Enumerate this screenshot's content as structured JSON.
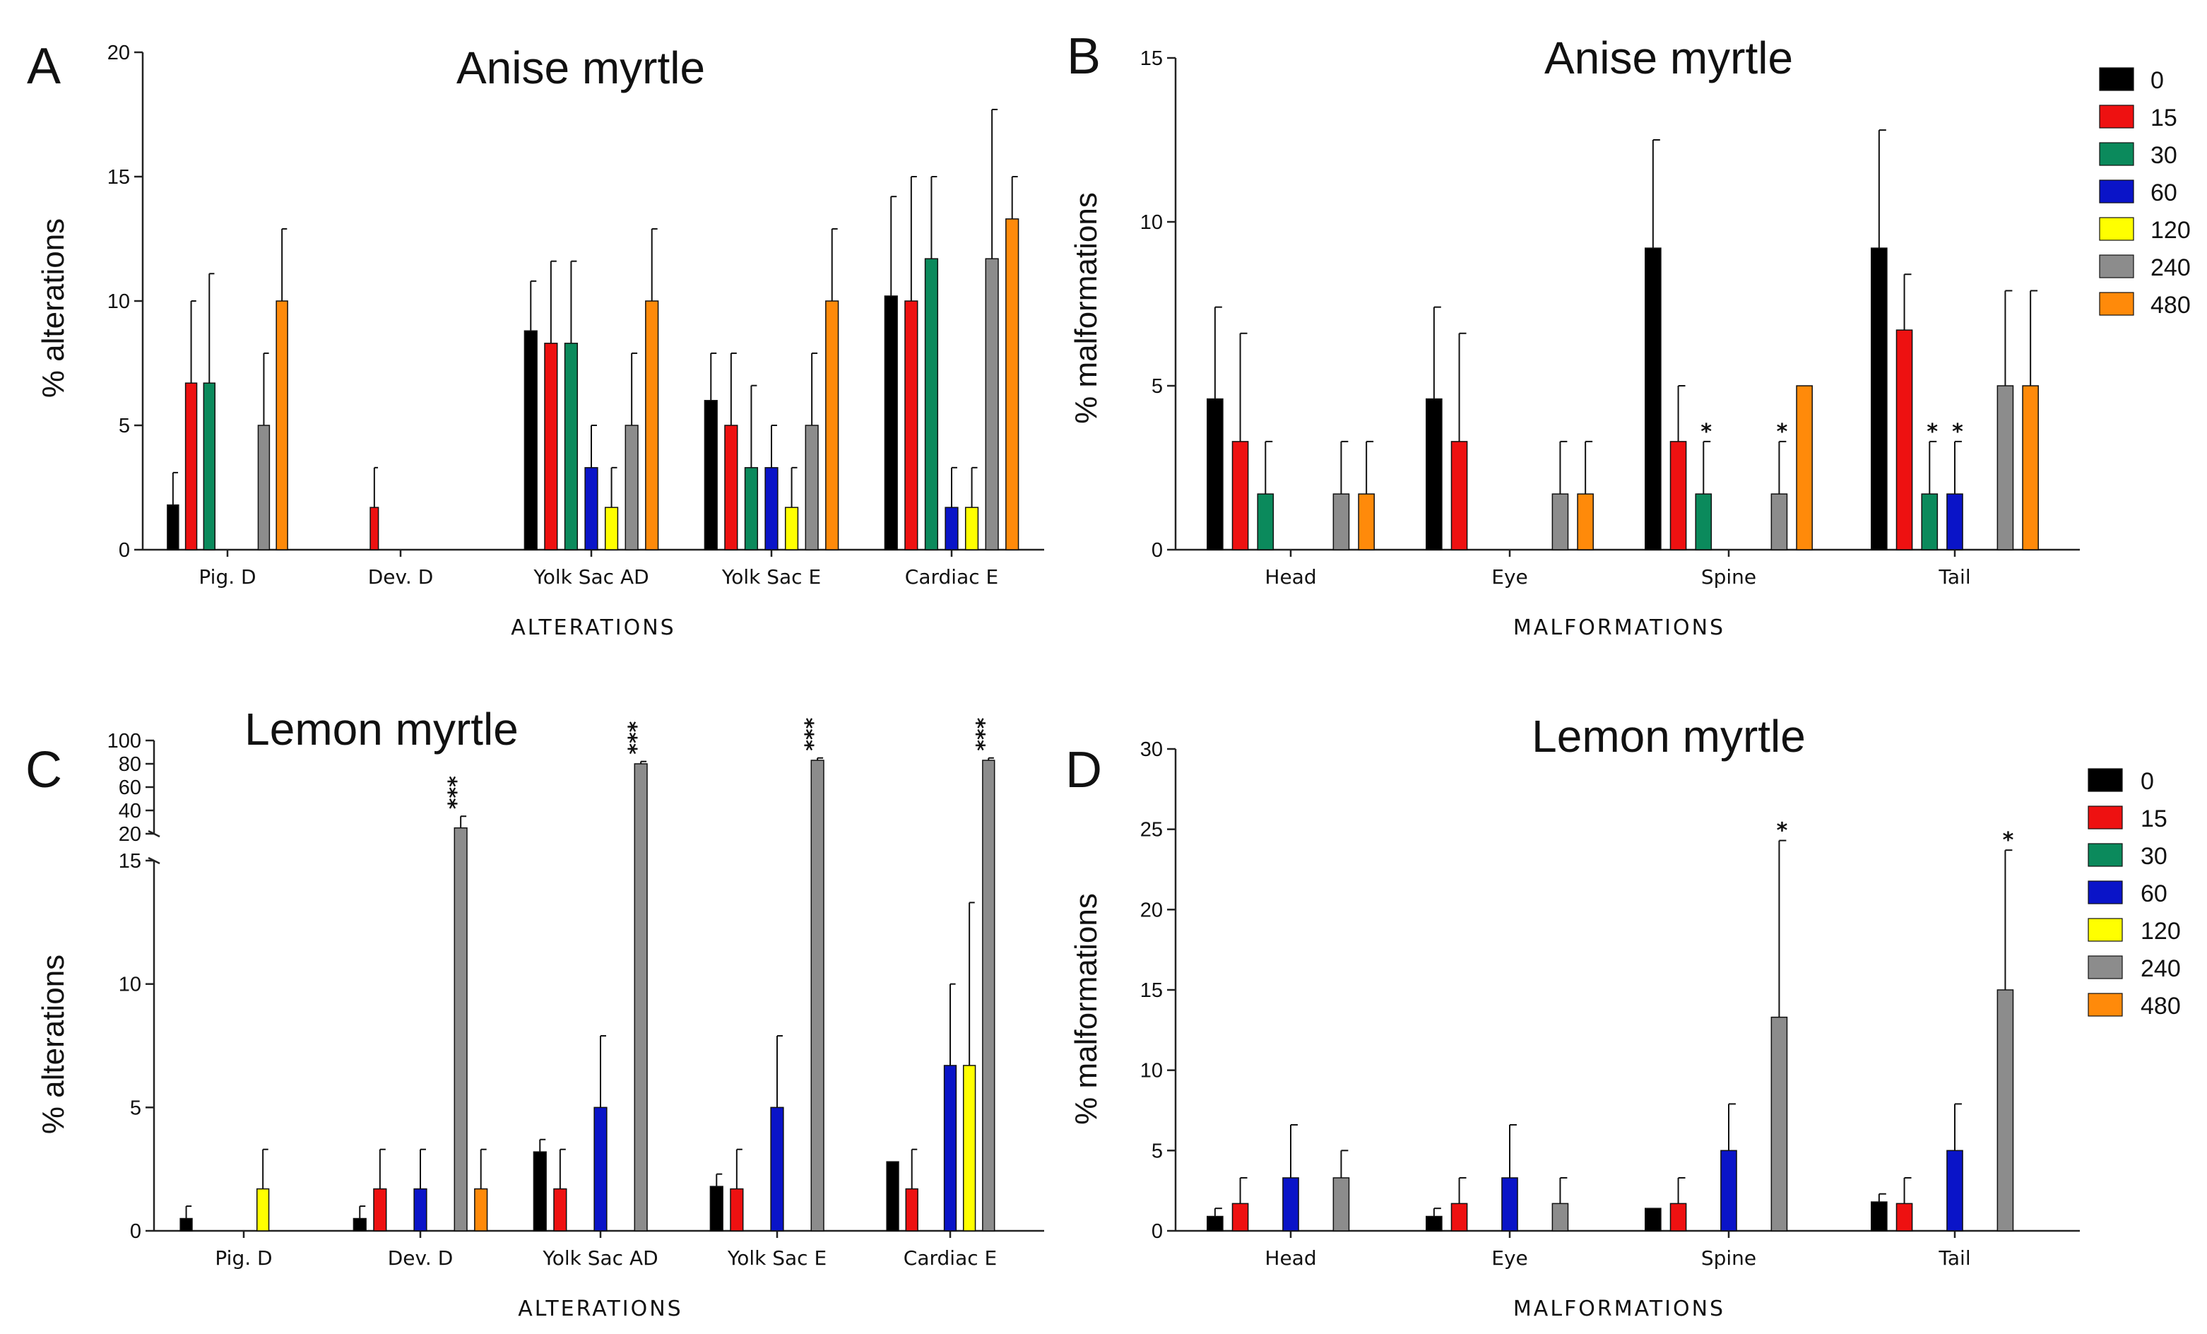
{
  "legend": {
    "doses": [
      "0",
      "15",
      "30",
      "60",
      "120",
      "240",
      "480"
    ],
    "colors": [
      "#000000",
      "#ee1111",
      "#0b8a5c",
      "#0a14c8",
      "#ffff00",
      "#8c8c8c",
      "#ff8a0a"
    ]
  },
  "chart_data": [
    {
      "id": "A",
      "letter": "A",
      "type": "bar",
      "title": "Anise myrtle",
      "xlabel": "ALTERATIONS",
      "ylabel": "% alterations",
      "ylim": [
        0,
        20
      ],
      "yticks": [
        "0",
        "5",
        "10",
        "15",
        "20"
      ],
      "categories": [
        "Pig. D",
        "Dev. D",
        "Yolk Sac AD",
        "Yolk Sac E",
        "Cardiac E"
      ],
      "series": [
        {
          "name": "0",
          "values": [
            1.8,
            0,
            8.8,
            6.0,
            10.2
          ],
          "errors": [
            1.3,
            0,
            2.0,
            1.9,
            4.0
          ],
          "stars": [
            "",
            "",
            "",
            "",
            ""
          ]
        },
        {
          "name": "15",
          "values": [
            6.7,
            1.7,
            8.3,
            5.0,
            10.0
          ],
          "errors": [
            3.3,
            1.6,
            3.3,
            2.9,
            5.0
          ],
          "stars": [
            "",
            "",
            "",
            "",
            ""
          ]
        },
        {
          "name": "30",
          "values": [
            6.7,
            0,
            8.3,
            3.3,
            11.7
          ],
          "errors": [
            4.4,
            0,
            3.3,
            3.3,
            3.3
          ],
          "stars": [
            "",
            "",
            "",
            "",
            ""
          ]
        },
        {
          "name": "60",
          "values": [
            0,
            0,
            3.3,
            3.3,
            1.7
          ],
          "errors": [
            0,
            0,
            1.7,
            1.7,
            1.6
          ],
          "stars": [
            "",
            "",
            "",
            "",
            ""
          ]
        },
        {
          "name": "120",
          "values": [
            0,
            0,
            1.7,
            1.7,
            1.7
          ],
          "errors": [
            0,
            0,
            1.6,
            1.6,
            1.6
          ],
          "stars": [
            "",
            "",
            "",
            "",
            ""
          ]
        },
        {
          "name": "240",
          "values": [
            5.0,
            0,
            5.0,
            5.0,
            11.7
          ],
          "errors": [
            2.9,
            0,
            2.9,
            2.9,
            6.0
          ],
          "stars": [
            "",
            "",
            "",
            "",
            ""
          ]
        },
        {
          "name": "480",
          "values": [
            10.0,
            0,
            10.0,
            10.0,
            13.3
          ],
          "errors": [
            2.9,
            0,
            2.9,
            2.9,
            1.7
          ],
          "stars": [
            "",
            "",
            "",
            "",
            ""
          ]
        }
      ]
    },
    {
      "id": "B",
      "letter": "B",
      "type": "bar",
      "title": "Anise myrtle",
      "xlabel": "MALFORMATIONS",
      "ylabel": "% malformations",
      "ylim": [
        0,
        15
      ],
      "yticks": [
        "0",
        "5",
        "10",
        "15"
      ],
      "categories": [
        "Head",
        "Eye",
        "Spine",
        "Tail"
      ],
      "series": [
        {
          "name": "0",
          "values": [
            4.6,
            4.6,
            9.2,
            9.2
          ],
          "errors": [
            2.8,
            2.8,
            3.3,
            3.6
          ],
          "stars": [
            "",
            "",
            "",
            ""
          ]
        },
        {
          "name": "15",
          "values": [
            3.3,
            3.3,
            3.3,
            6.7
          ],
          "errors": [
            3.3,
            3.3,
            1.7,
            1.7
          ],
          "stars": [
            "",
            "",
            "",
            ""
          ]
        },
        {
          "name": "30",
          "values": [
            1.7,
            0,
            1.7,
            1.7
          ],
          "errors": [
            1.6,
            0,
            1.6,
            1.6
          ],
          "stars": [
            "",
            "",
            "*",
            "*"
          ]
        },
        {
          "name": "60",
          "values": [
            0,
            0,
            0,
            1.7
          ],
          "errors": [
            0,
            0,
            0,
            1.6
          ],
          "stars": [
            "",
            "",
            "",
            "*"
          ]
        },
        {
          "name": "120",
          "values": [
            0,
            0,
            0,
            0
          ],
          "errors": [
            0,
            0,
            0,
            0
          ],
          "stars": [
            "",
            "",
            "",
            ""
          ]
        },
        {
          "name": "240",
          "values": [
            1.7,
            1.7,
            1.7,
            5.0
          ],
          "errors": [
            1.6,
            1.6,
            1.6,
            2.9
          ],
          "stars": [
            "",
            "",
            "*",
            ""
          ]
        },
        {
          "name": "480",
          "values": [
            1.7,
            1.7,
            5.0,
            5.0
          ],
          "errors": [
            1.6,
            1.6,
            0,
            2.9
          ],
          "stars": [
            "",
            "",
            "",
            ""
          ]
        }
      ]
    },
    {
      "id": "C",
      "letter": "C",
      "type": "bar",
      "title": "Lemon myrtle",
      "xlabel": "ALTERATIONS",
      "ylabel": "% alterations",
      "ylim": [
        0,
        100
      ],
      "broken_axis": {
        "lower": [
          0,
          15
        ],
        "upper": [
          20,
          100
        ]
      },
      "yticks_lower": [
        "0",
        "5",
        "10",
        "15"
      ],
      "yticks_upper": [
        "20",
        "40",
        "60",
        "80",
        "100"
      ],
      "categories": [
        "Pig. D",
        "Dev. D",
        "Yolk Sac AD",
        "Yolk Sac E",
        "Cardiac E"
      ],
      "series": [
        {
          "name": "0",
          "values": [
            0.5,
            0.5,
            3.2,
            1.8,
            2.8
          ],
          "errors": [
            0.5,
            0.5,
            0.5,
            0.5,
            0
          ],
          "stars": [
            "",
            "",
            "",
            "",
            ""
          ]
        },
        {
          "name": "15",
          "values": [
            0,
            1.7,
            1.7,
            1.7,
            1.7
          ],
          "errors": [
            0,
            1.6,
            1.6,
            1.6,
            1.6
          ],
          "stars": [
            "",
            "",
            "",
            "",
            ""
          ]
        },
        {
          "name": "30",
          "values": [
            0,
            0,
            0,
            0,
            0
          ],
          "errors": [
            0,
            0,
            0,
            0,
            0
          ],
          "stars": [
            "",
            "",
            "",
            "",
            ""
          ]
        },
        {
          "name": "60",
          "values": [
            0,
            1.7,
            5.0,
            5.0,
            6.7
          ],
          "errors": [
            0,
            1.6,
            2.9,
            2.9,
            3.3
          ],
          "stars": [
            "",
            "",
            "",
            "",
            ""
          ]
        },
        {
          "name": "120",
          "values": [
            1.7,
            0,
            0,
            0,
            6.7
          ],
          "errors": [
            1.6,
            0,
            0,
            0,
            6.6
          ],
          "stars": [
            "",
            "",
            "",
            "",
            ""
          ]
        },
        {
          "name": "240",
          "values": [
            0,
            25,
            80,
            83,
            83
          ],
          "errors": [
            0,
            10,
            2,
            2,
            2
          ],
          "stars": [
            "",
            "***",
            "***",
            "***",
            "***"
          ]
        },
        {
          "name": "480",
          "values": [
            0,
            1.7,
            0,
            0,
            0
          ],
          "errors": [
            0,
            1.6,
            0,
            0,
            0
          ],
          "stars": [
            "",
            "",
            "",
            "",
            ""
          ]
        }
      ]
    },
    {
      "id": "D",
      "letter": "D",
      "type": "bar",
      "title": "Lemon myrtle",
      "xlabel": "MALFORMATIONS",
      "ylabel": "% malformations",
      "ylim": [
        0,
        30
      ],
      "yticks": [
        "0",
        "5",
        "10",
        "15",
        "20",
        "25",
        "30"
      ],
      "categories": [
        "Head",
        "Eye",
        "Spine",
        "Tail"
      ],
      "series": [
        {
          "name": "0",
          "values": [
            0.9,
            0.9,
            1.4,
            1.8
          ],
          "errors": [
            0.5,
            0.5,
            0,
            0.5
          ],
          "stars": [
            "",
            "",
            "",
            ""
          ]
        },
        {
          "name": "15",
          "values": [
            1.7,
            1.7,
            1.7,
            1.7
          ],
          "errors": [
            1.6,
            1.6,
            1.6,
            1.6
          ],
          "stars": [
            "",
            "",
            "",
            ""
          ]
        },
        {
          "name": "30",
          "values": [
            0,
            0,
            0,
            0
          ],
          "errors": [
            0,
            0,
            0,
            0
          ],
          "stars": [
            "",
            "",
            "",
            ""
          ]
        },
        {
          "name": "60",
          "values": [
            3.3,
            3.3,
            5.0,
            5.0
          ],
          "errors": [
            3.3,
            3.3,
            2.9,
            2.9
          ],
          "stars": [
            "",
            "",
            "",
            ""
          ]
        },
        {
          "name": "120",
          "values": [
            0,
            0,
            0,
            0
          ],
          "errors": [
            0,
            0,
            0,
            0
          ],
          "stars": [
            "",
            "",
            "",
            ""
          ]
        },
        {
          "name": "240",
          "values": [
            3.3,
            1.7,
            13.3,
            15.0
          ],
          "errors": [
            1.7,
            1.6,
            11.0,
            8.7
          ],
          "stars": [
            "",
            "",
            "*",
            "*"
          ]
        },
        {
          "name": "480",
          "values": [
            0,
            0,
            0,
            0
          ],
          "errors": [
            0,
            0,
            0,
            0
          ],
          "stars": [
            "",
            "",
            "",
            ""
          ]
        }
      ]
    }
  ]
}
